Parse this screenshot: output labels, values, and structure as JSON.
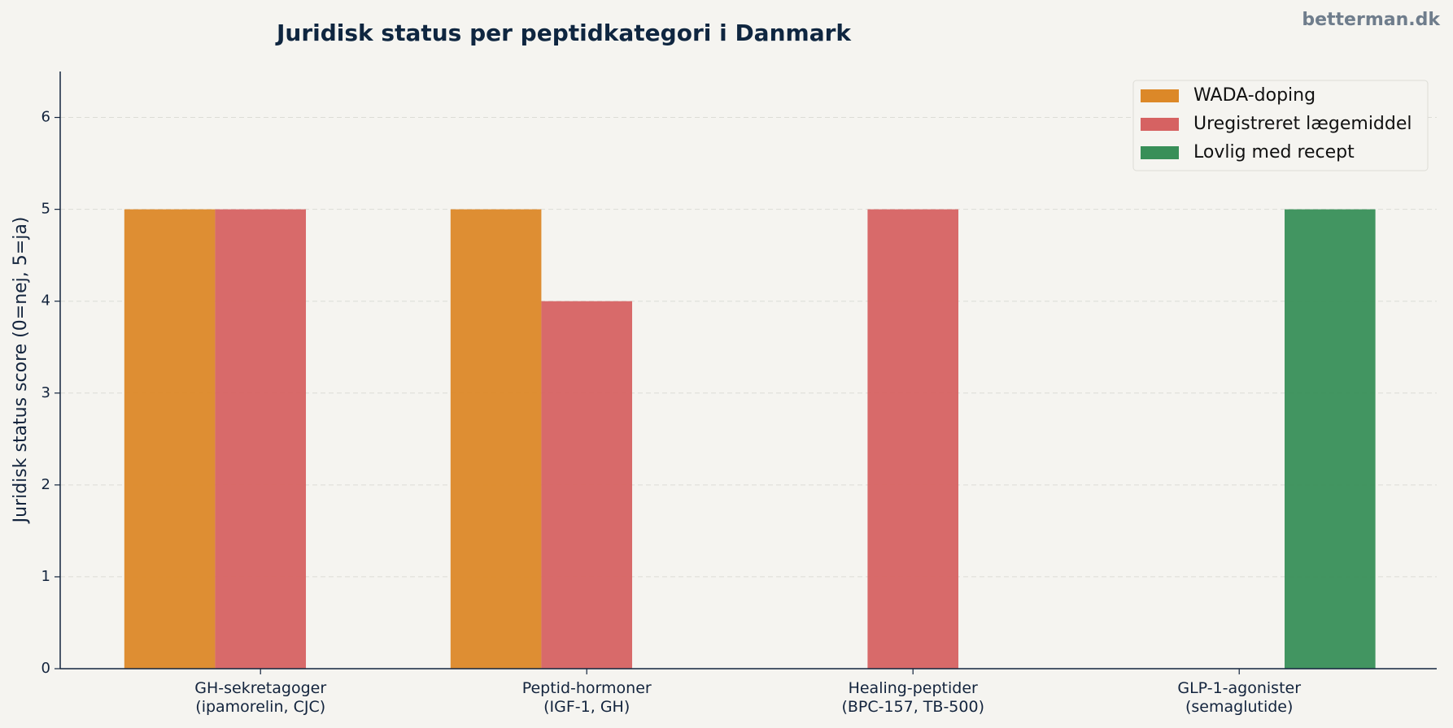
{
  "chart_data": {
    "type": "bar",
    "title": "Juridisk status per peptidkategori i Danmark",
    "watermark": "betterman.dk",
    "ylabel": "Juridisk status score (0=nej, 5=ja)",
    "categories": [
      [
        "GH-sekretagoger",
        "(ipamorelin, CJC)"
      ],
      [
        "Peptid-hormoner",
        "(IGF-1, GH)"
      ],
      [
        "Healing-peptider",
        "(BPC-157, TB-500)"
      ],
      [
        "GLP-1-agonister",
        "(semaglutide)"
      ]
    ],
    "series": [
      {
        "name": "WADA-doping",
        "color": "#dc8828",
        "values": [
          5,
          5,
          0,
          0
        ]
      },
      {
        "name": "Uregistreret lægemiddel",
        "color": "#d66262",
        "values": [
          5,
          4,
          5,
          0
        ]
      },
      {
        "name": "Lovlig med recept",
        "color": "#388f58",
        "values": [
          0,
          0,
          0,
          5
        ]
      }
    ],
    "ylim": [
      0,
      6.5
    ],
    "yticks": [
      0,
      1,
      2,
      3,
      4,
      5,
      6
    ],
    "grid": true,
    "legend": "upper right"
  }
}
